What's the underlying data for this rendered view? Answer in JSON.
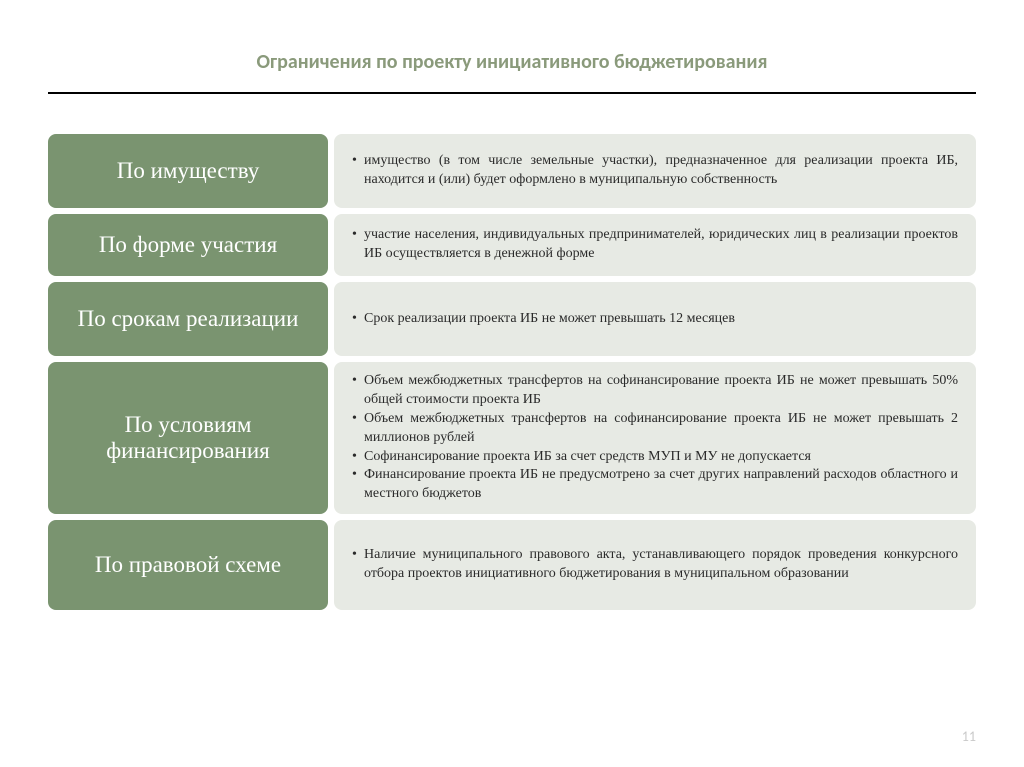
{
  "title": "Ограничения по проекту инициативного бюджетирования",
  "page_number": "11",
  "colors": {
    "label_bg": "#7a9470",
    "content_bg": "#e7eae4",
    "title_color": "#8a9a7b"
  },
  "rows": [
    {
      "label": "По имуществу",
      "bullets": [
        "имущество (в том числе земельные участки), предназначенное для реализации проекта ИБ, находится и (или) будет оформлено в муниципальную собственность"
      ]
    },
    {
      "label": "По форме участия",
      "bullets": [
        "участие населения, индивидуальных предпринимателей, юридических лиц в реализации проектов ИБ осуществляется в денежной форме"
      ]
    },
    {
      "label": "По срокам реализации",
      "bullets": [
        "Срок реализации проекта ИБ не может превышать 12 месяцев"
      ]
    },
    {
      "label": "По условиям финансирования",
      "bullets": [
        "Объем межбюджетных трансфертов на софинансирование проекта ИБ не может превышать 50% общей стоимости проекта ИБ",
        "Объем межбюджетных трансфертов на софинансирование проекта ИБ не может превышать 2 миллионов рублей",
        "Софинансирование проекта ИБ за счет средств МУП и МУ не допускается",
        "Финансирование проекта ИБ не предусмотрено за счет других направлений расходов областного и местного бюджетов"
      ]
    },
    {
      "label": "По правовой схеме",
      "bullets": [
        "Наличие муниципального правового акта, устанавливающего порядок проведения конкурсного отбора проектов инициативного бюджетирования в муниципальном образовании"
      ]
    }
  ]
}
